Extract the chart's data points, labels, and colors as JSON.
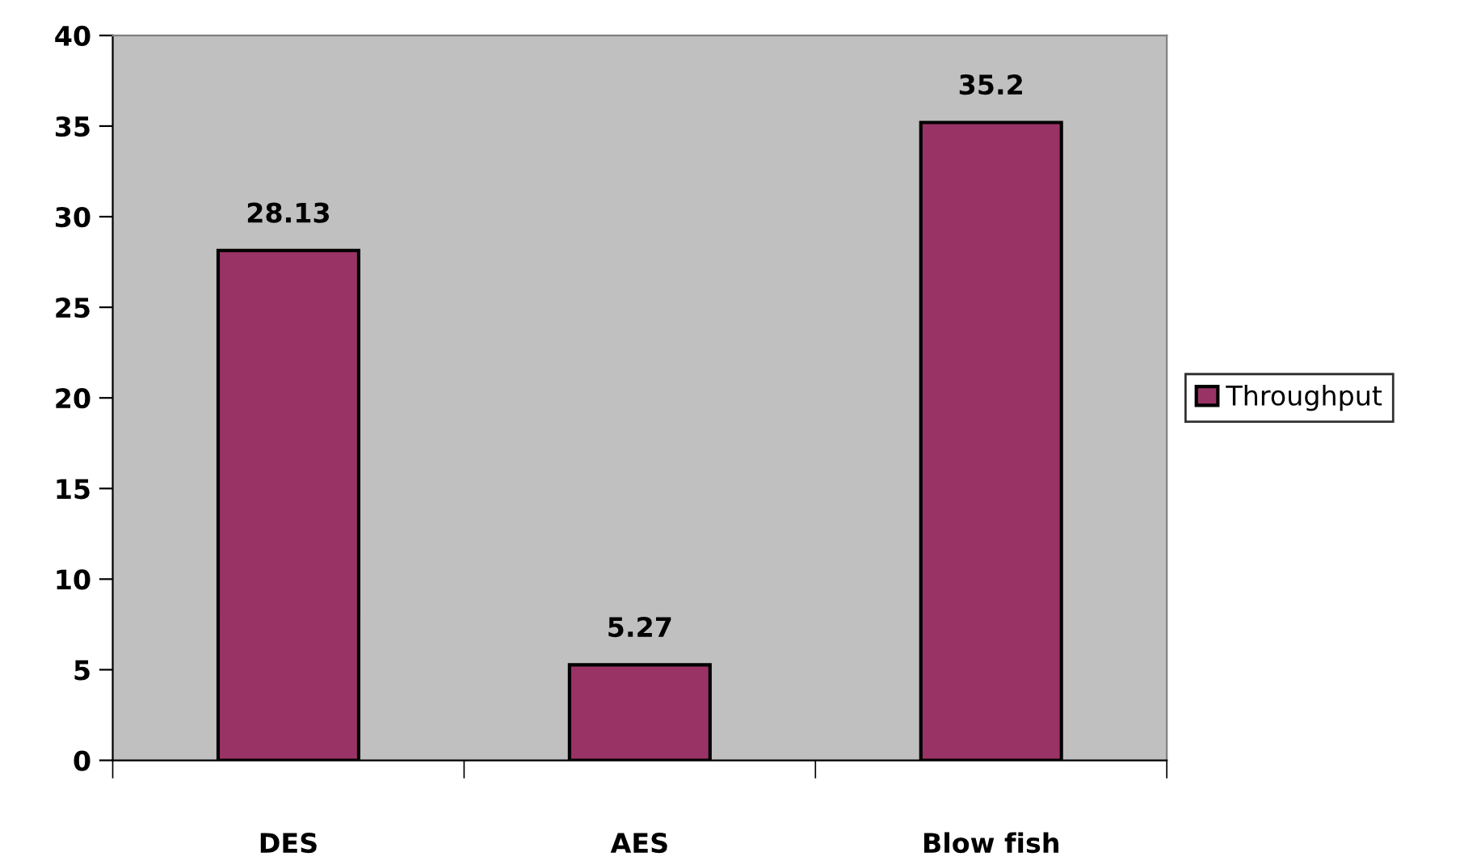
{
  "chart_data": {
    "type": "bar",
    "categories": [
      "DES",
      "AES",
      "Blow fish"
    ],
    "series": [
      {
        "name": "Throughput",
        "color": "#993366",
        "values": [
          28.13,
          5.27,
          35.2
        ]
      }
    ],
    "ylim": [
      0,
      40
    ],
    "yticks": [
      0,
      5,
      10,
      15,
      20,
      25,
      30,
      35,
      40
    ],
    "data_labels": true,
    "legend": "right",
    "grid": false
  }
}
